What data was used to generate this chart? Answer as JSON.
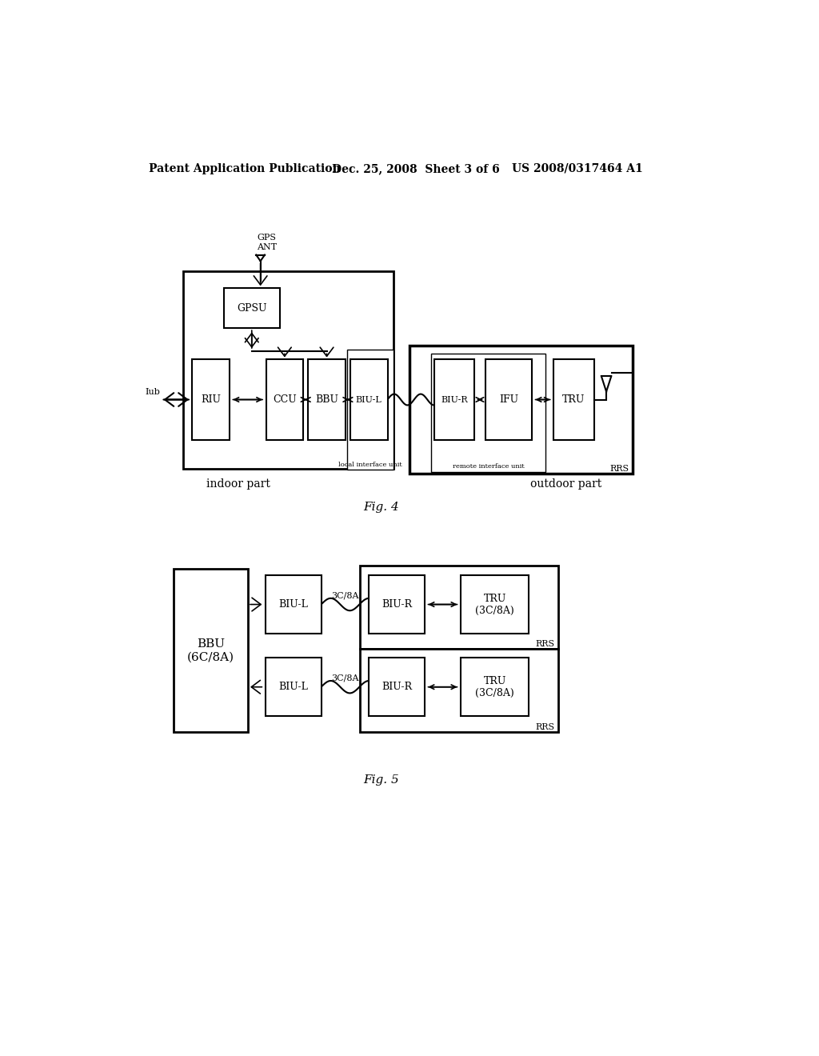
{
  "bg_color": "#ffffff",
  "header_left": "Patent Application Publication",
  "header_mid": "Dec. 25, 2008  Sheet 3 of 6",
  "header_right": "US 2008/0317464 A1",
  "fig4_caption": "Fig. 4",
  "fig5_caption": "Fig. 5",
  "fig4_indoor_label": "indoor part",
  "fig4_outdoor_label": "outdoor part",
  "fig4_iub_label": "Iub",
  "fig4_rrs_label": "RRS",
  "fig4_gps_label": "GPS\nANT",
  "fig4_local_label": "local interface unit",
  "fig4_remote_label": "remote interface unit",
  "fig5_bbu_label": "BBU\n(6C/8A)",
  "fig5_top_biu_l": "BIU-L",
  "fig5_top_biu_r": "BIU-R",
  "fig5_top_tru": "TRU\n(3C/8A)",
  "fig5_bot_biu_l": "BIU-L",
  "fig5_bot_biu_r": "BIU-R",
  "fig5_bot_tru": "TRU\n(3C/8A)",
  "fig5_top_cable": "3C/8A",
  "fig5_bot_cable": "3C/8A",
  "fig5_rrs_top": "RRS",
  "fig5_rrs_bot": "RRS"
}
